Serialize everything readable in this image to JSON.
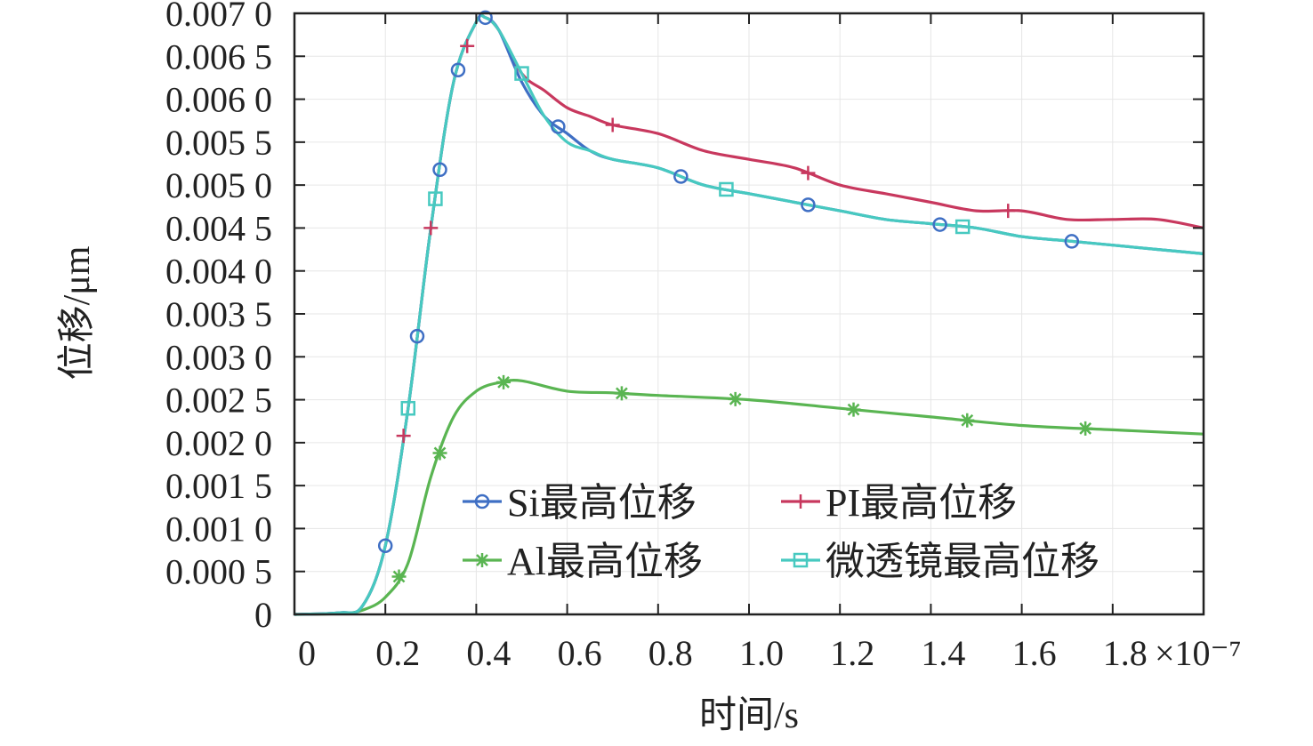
{
  "chart_data": {
    "type": "line",
    "xlabel": "时间/s",
    "ylabel": "位移/μm",
    "x_multiplier_label": "×10⁻⁷",
    "x_scale": "×10^-7 s",
    "xlim": [
      0,
      2.0
    ],
    "ylim": [
      0,
      0.007
    ],
    "x_ticks": [
      "0",
      "0.2",
      "0.4",
      "0.6",
      "0.8",
      "1.0",
      "1.2",
      "1.4",
      "1.6",
      "1.8"
    ],
    "y_ticks": [
      "0",
      "0.000 5",
      "0.001 0",
      "0.001 5",
      "0.002 0",
      "0.002 5",
      "0.003 0",
      "0.003 5",
      "0.004 0",
      "0.004 5",
      "0.005 0",
      "0.005 5",
      "0.006 0",
      "0.006 5",
      "0.007 0"
    ],
    "legend_position": "lower-right",
    "grid": true,
    "series": [
      {
        "name": "Si最高位移",
        "color": "#3f6fc4",
        "marker": "circle",
        "x": [
          0,
          0.1,
          0.15,
          0.2,
          0.25,
          0.3,
          0.35,
          0.4,
          0.42,
          0.45,
          0.5,
          0.55,
          0.6,
          0.65,
          0.7,
          0.8,
          0.9,
          1.0,
          1.1,
          1.2,
          1.3,
          1.4,
          1.5,
          1.6,
          1.7,
          1.8,
          1.9,
          2.0
        ],
        "values": [
          0,
          2e-05,
          0.0001,
          0.0008,
          0.0024,
          0.0045,
          0.0062,
          0.0069,
          0.00695,
          0.0068,
          0.0062,
          0.0058,
          0.0056,
          0.0054,
          0.0053,
          0.0052,
          0.005,
          0.0049,
          0.0048,
          0.0047,
          0.0046,
          0.00455,
          0.0045,
          0.0044,
          0.00435,
          0.0043,
          0.00425,
          0.0042
        ],
        "marker_x": [
          0.2,
          0.27,
          0.32,
          0.36,
          0.42,
          0.58,
          0.85,
          1.13,
          1.42,
          1.71
        ]
      },
      {
        "name": "PI最高位移",
        "color": "#c8385e",
        "marker": "plus",
        "x": [
          0,
          0.1,
          0.15,
          0.2,
          0.25,
          0.3,
          0.35,
          0.4,
          0.42,
          0.45,
          0.5,
          0.55,
          0.6,
          0.65,
          0.7,
          0.8,
          0.9,
          1.0,
          1.1,
          1.2,
          1.3,
          1.4,
          1.5,
          1.6,
          1.7,
          1.8,
          1.9,
          2.0
        ],
        "values": [
          0,
          2e-05,
          0.0001,
          0.0008,
          0.0024,
          0.0045,
          0.0062,
          0.0069,
          0.00695,
          0.0068,
          0.0063,
          0.0061,
          0.0059,
          0.0058,
          0.0057,
          0.0056,
          0.0054,
          0.0053,
          0.0052,
          0.005,
          0.0049,
          0.0048,
          0.0047,
          0.0047,
          0.0046,
          0.0046,
          0.0046,
          0.0045
        ],
        "marker_x": [
          0.24,
          0.3,
          0.38,
          0.7,
          1.13,
          1.57
        ]
      },
      {
        "name": "Al最高位移",
        "color": "#5ab552",
        "marker": "star",
        "x": [
          0,
          0.1,
          0.15,
          0.2,
          0.25,
          0.3,
          0.35,
          0.4,
          0.45,
          0.5,
          0.6,
          0.7,
          0.8,
          1.0,
          1.2,
          1.4,
          1.6,
          1.8,
          2.0
        ],
        "values": [
          0,
          1e-05,
          5e-05,
          0.0002,
          0.0006,
          0.0016,
          0.0023,
          0.0026,
          0.0027,
          0.00272,
          0.0026,
          0.00258,
          0.00255,
          0.0025,
          0.0024,
          0.0023,
          0.0022,
          0.00215,
          0.0021
        ],
        "marker_x": [
          0.23,
          0.32,
          0.46,
          0.72,
          0.97,
          1.23,
          1.48,
          1.74
        ]
      },
      {
        "name": "微透镜最高位移",
        "color": "#47c9c0",
        "marker": "square",
        "x": [
          0,
          0.1,
          0.15,
          0.2,
          0.25,
          0.3,
          0.35,
          0.4,
          0.42,
          0.45,
          0.5,
          0.55,
          0.6,
          0.65,
          0.7,
          0.8,
          0.9,
          1.0,
          1.1,
          1.2,
          1.3,
          1.4,
          1.5,
          1.6,
          1.7,
          1.8,
          1.9,
          2.0
        ],
        "values": [
          0,
          2e-05,
          0.0001,
          0.0008,
          0.0024,
          0.0045,
          0.0062,
          0.0069,
          0.00695,
          0.0068,
          0.0063,
          0.0058,
          0.0055,
          0.0054,
          0.0053,
          0.0052,
          0.005,
          0.0049,
          0.0048,
          0.0047,
          0.0046,
          0.00455,
          0.0045,
          0.0044,
          0.00435,
          0.0043,
          0.00425,
          0.0042
        ],
        "marker_x": [
          0.25,
          0.31,
          0.5,
          0.95,
          1.47
        ]
      }
    ]
  }
}
